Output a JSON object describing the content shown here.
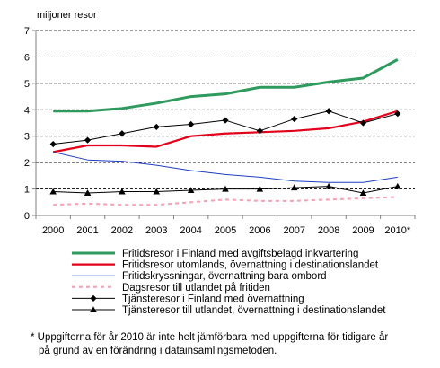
{
  "chart_data": {
    "type": "line",
    "ylabel": "miljoner resor",
    "ylim": [
      0,
      7
    ],
    "yticks": [
      0,
      1,
      2,
      3,
      4,
      5,
      6,
      7
    ],
    "categories": [
      "2000",
      "2001",
      "2002",
      "2003",
      "2004",
      "2005",
      "2006",
      "2007",
      "2008",
      "2009",
      "2010*"
    ],
    "grid": "horizontal dashed",
    "legend_position": "bottom",
    "series": [
      {
        "name": "Fritidsresor i Finland med avgiftsbelagd inkvartering",
        "values": [
          3.95,
          3.95,
          4.05,
          4.25,
          4.5,
          4.6,
          4.85,
          4.85,
          5.05,
          5.2,
          5.9
        ],
        "color": "#2e9a5e",
        "style": "thick-solid",
        "marker": "none"
      },
      {
        "name": "Fritidsresor utomlands, övernattning i destinationslandet",
        "values": [
          2.4,
          2.65,
          2.65,
          2.6,
          3.0,
          3.1,
          3.15,
          3.2,
          3.3,
          3.55,
          3.95
        ],
        "color": "#e3001b",
        "style": "solid",
        "marker": "none"
      },
      {
        "name": "Fritidskryssningar, övernattning bara ombord",
        "values": [
          2.4,
          2.1,
          2.05,
          1.9,
          1.7,
          1.55,
          1.45,
          1.3,
          1.25,
          1.25,
          1.45
        ],
        "color": "#1f3fbf",
        "style": "thin-solid",
        "marker": "none"
      },
      {
        "name": "Dagsresor till utlandet på fritiden",
        "values": [
          0.4,
          0.45,
          0.4,
          0.4,
          0.5,
          0.6,
          0.55,
          0.55,
          0.6,
          0.65,
          0.7
        ],
        "color": "#f6a0b4",
        "style": "dashed",
        "marker": "none"
      },
      {
        "name": "Tjänsteresor i Finland med övernattning",
        "values": [
          2.7,
          2.85,
          3.1,
          3.35,
          3.45,
          3.6,
          3.2,
          3.65,
          3.95,
          3.5,
          3.85
        ],
        "color": "#000000",
        "style": "thin-solid",
        "marker": "diamond"
      },
      {
        "name": "Tjänsteresor till utlandet, övernattning i destinationslandet",
        "values": [
          0.9,
          0.85,
          0.9,
          0.9,
          0.95,
          1.0,
          1.0,
          1.05,
          1.1,
          0.85,
          1.1
        ],
        "color": "#000000",
        "style": "thin-solid",
        "marker": "triangle"
      }
    ]
  },
  "footnote": {
    "line1": "* Uppgifterna för år 2010 är inte helt jämförbara med uppgifterna för tidigare år",
    "line2": "på grund av en förändring i datainsamlingsmetoden."
  }
}
